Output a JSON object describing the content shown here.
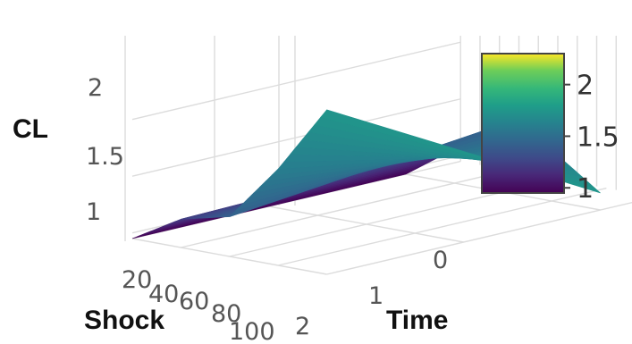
{
  "chart_data": {
    "type": "surface3d",
    "title": "",
    "zlabel": "CL",
    "xlabel": "Shock",
    "ylabel": "Time",
    "x_ticks": [
      "20",
      "40",
      "60",
      "80",
      "100"
    ],
    "y_ticks": [
      "0",
      "1",
      "2"
    ],
    "z_ticks": [
      "1",
      "1.5",
      "2"
    ],
    "colorbar": {
      "ticks": [
        "1",
        "1.5",
        "2"
      ],
      "range": [
        0.95,
        2.3
      ],
      "colorscale": "Viridis"
    },
    "surface": {
      "shock": [
        20,
        40,
        60,
        80,
        100
      ],
      "time": [
        0,
        2
      ],
      "z": [
        [
          0.95,
          1.2,
          1.3,
          1.8,
          2.4
        ],
        [
          0.95,
          1.25,
          1.55,
          1.4,
          1.1
        ]
      ]
    },
    "legend": "right",
    "grid": true
  }
}
